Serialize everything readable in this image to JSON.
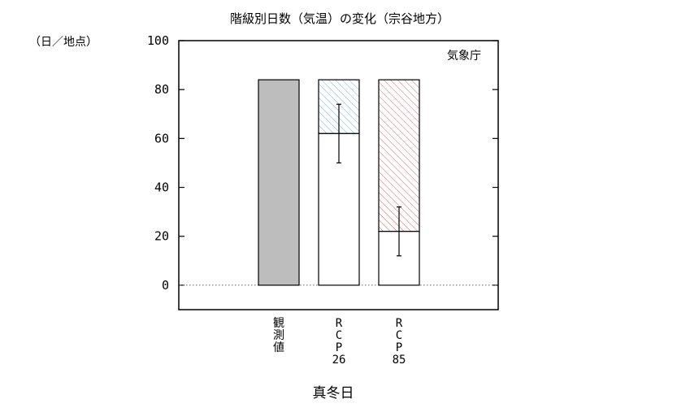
{
  "chart_data": {
    "type": "bar",
    "title": "階級別日数（気温）の変化（宗谷地方）",
    "unit_label": "（日／地点）",
    "source_label": "気象庁",
    "xlabel": "真冬日",
    "ylim": [
      -10,
      100
    ],
    "yticks": [
      0,
      20,
      40,
      60,
      80,
      100
    ],
    "zero_line": "dotted",
    "categories": [
      {
        "label": [
          "観",
          "測",
          "値"
        ]
      },
      {
        "label": [
          "R",
          "C",
          "P",
          "26"
        ]
      },
      {
        "label": [
          "R",
          "C",
          "P",
          "85"
        ]
      }
    ],
    "series": [
      {
        "category": 0,
        "value": 84,
        "fill": "#bdbdbd"
      },
      {
        "category": 1,
        "base_value": 84,
        "value": 62,
        "error_low": 50,
        "error_high": 74,
        "hatch_color": "#6aaed6"
      },
      {
        "category": 2,
        "base_value": 84,
        "value": 22,
        "error_low": 12,
        "error_high": 32,
        "hatch_color": "#d46a6a"
      }
    ]
  }
}
